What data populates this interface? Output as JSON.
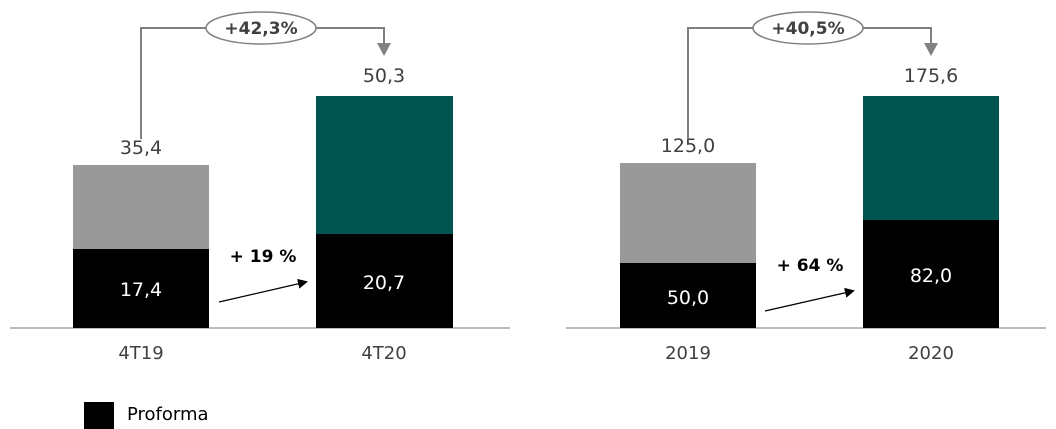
{
  "colors": {
    "prior_total": "#999999",
    "current_total": "#005550",
    "proforma": "#000000",
    "axis": "#a6a6a6",
    "connector": "#808080",
    "label_text": "#404040"
  },
  "chart_data": [
    {
      "type": "bar",
      "stacked": true,
      "categories": [
        "4T19",
        "4T20"
      ],
      "totals": [
        "35,4",
        "50,3"
      ],
      "total_values": [
        35.4,
        50.3
      ],
      "proforma_labels": [
        "17,4",
        "20,7"
      ],
      "proforma_values": [
        17.4,
        20.7
      ],
      "growth_total": "+42,3%",
      "growth_proforma": "+ 19 %"
    },
    {
      "type": "bar",
      "stacked": true,
      "categories": [
        "2019",
        "2020"
      ],
      "totals": [
        "125,0",
        "175,6"
      ],
      "total_values": [
        125.0,
        175.6
      ],
      "proforma_labels": [
        "50,0",
        "82,0"
      ],
      "proforma_values": [
        50.0,
        82.0
      ],
      "growth_total": "+40,5%",
      "growth_proforma": "+ 64 %"
    }
  ],
  "legend": {
    "label": "Proforma"
  }
}
